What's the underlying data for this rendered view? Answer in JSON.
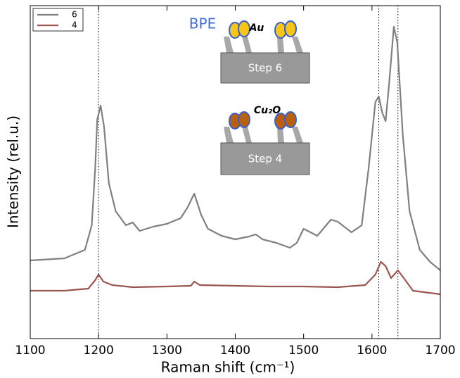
{
  "chart_data": {
    "type": "line",
    "x_label": "Raman shift (cm⁻¹)",
    "y_label": "Intensity (rel.u.)",
    "xlim": [
      1100,
      1700
    ],
    "xticks": [
      1100,
      1200,
      1300,
      1400,
      1500,
      1600,
      1700
    ],
    "ylim": [
      0,
      473
    ],
    "legend": "upper left",
    "vlines": [
      1200,
      1610,
      1638
    ],
    "series": [
      {
        "name": "6",
        "color": "#808080",
        "x": [
          1100,
          1150,
          1180,
          1190,
          1195,
          1198,
          1203,
          1208,
          1215,
          1225,
          1240,
          1250,
          1260,
          1280,
          1300,
          1320,
          1330,
          1340,
          1350,
          1360,
          1380,
          1400,
          1420,
          1430,
          1440,
          1460,
          1480,
          1490,
          1500,
          1510,
          1520,
          1540,
          1550,
          1570,
          1585,
          1595,
          1605,
          1610,
          1615,
          1620,
          1625,
          1632,
          1637,
          1645,
          1655,
          1670,
          1685,
          1700
        ],
        "values": [
          111,
          114,
          126,
          161,
          241,
          311,
          331,
          301,
          221,
          181,
          161,
          165,
          153,
          159,
          163,
          171,
          186,
          206,
          176,
          156,
          146,
          141,
          145,
          148,
          141,
          136,
          129,
          136,
          156,
          151,
          146,
          169,
          166,
          151,
          161,
          241,
          336,
          344,
          321,
          309,
          361,
          443,
          421,
          291,
          181,
          126,
          109,
          97
        ]
      },
      {
        "name": "4",
        "color": "#9b5550",
        "x": [
          1100,
          1150,
          1185,
          1195,
          1200,
          1207,
          1220,
          1250,
          1300,
          1335,
          1340,
          1348,
          1400,
          1450,
          1500,
          1550,
          1590,
          1605,
          1613,
          1620,
          1628,
          1638,
          1645,
          1660,
          1700
        ],
        "values": [
          68,
          68,
          71,
          83,
          91,
          81,
          76,
          73,
          74,
          75,
          81,
          76,
          75,
          74,
          74,
          73,
          76,
          91,
          109,
          103,
          86,
          97,
          88,
          68,
          63
        ]
      }
    ],
    "inset": {
      "molecule": "BPE",
      "top_particle": "Au",
      "top_step": "Step 6",
      "bottom_particle": "Cu₂O",
      "bottom_step": "Step 4"
    }
  }
}
